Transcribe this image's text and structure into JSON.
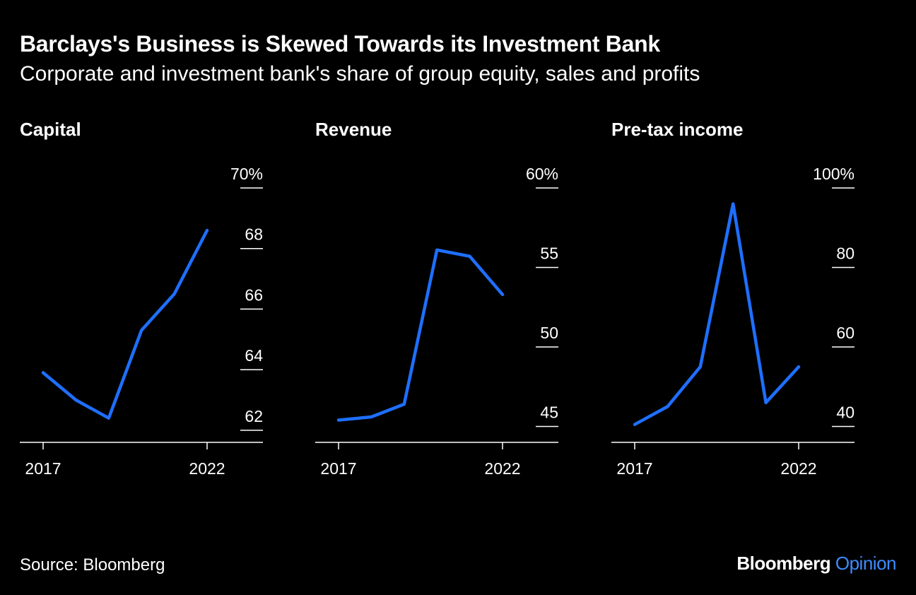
{
  "header": {
    "title": "Barclays's Business is Skewed Towards its Investment Bank",
    "subtitle": "Corporate and investment bank's share of group equity, sales and profits"
  },
  "footer": {
    "source": "Source: Bloomberg",
    "brand": "Bloomberg",
    "brand_accent": "Opinion"
  },
  "colors": {
    "line": "#1e6fff",
    "background": "#000000",
    "text": "#ffffff",
    "accent": "#3d8cff"
  },
  "chart_data": [
    {
      "type": "line",
      "title": "Capital",
      "x": [
        2017,
        2018,
        2019,
        2020,
        2021,
        2022
      ],
      "values": [
        63.9,
        63.0,
        62.4,
        65.3,
        66.5,
        68.6
      ],
      "ylim": [
        61.6,
        70
      ],
      "yticks": [
        62,
        64,
        66,
        68,
        70
      ],
      "ytick_labels": [
        "62",
        "64",
        "66",
        "68",
        "70%"
      ],
      "xtick_labels": [
        "2017",
        "2022"
      ],
      "xlabel": "",
      "ylabel": ""
    },
    {
      "type": "line",
      "title": "Revenue",
      "x": [
        2017,
        2018,
        2019,
        2020,
        2021,
        2022
      ],
      "values": [
        45.4,
        45.6,
        46.4,
        56.1,
        55.7,
        53.3
      ],
      "ylim": [
        44.0,
        60
      ],
      "yticks": [
        45,
        50,
        55,
        60
      ],
      "ytick_labels": [
        "45",
        "50",
        "55",
        "60%"
      ],
      "xtick_labels": [
        "2017",
        "2022"
      ],
      "xlabel": "",
      "ylabel": ""
    },
    {
      "type": "line",
      "title": "Pre-tax income",
      "x": [
        2017,
        2018,
        2019,
        2020,
        2021,
        2022
      ],
      "values": [
        40.5,
        45,
        55,
        96,
        46,
        55
      ],
      "ylim": [
        36.0,
        100
      ],
      "yticks": [
        40,
        60,
        80,
        100
      ],
      "ytick_labels": [
        "40",
        "60",
        "80",
        "100%"
      ],
      "xtick_labels": [
        "2017",
        "2022"
      ],
      "xlabel": "",
      "ylabel": ""
    }
  ]
}
